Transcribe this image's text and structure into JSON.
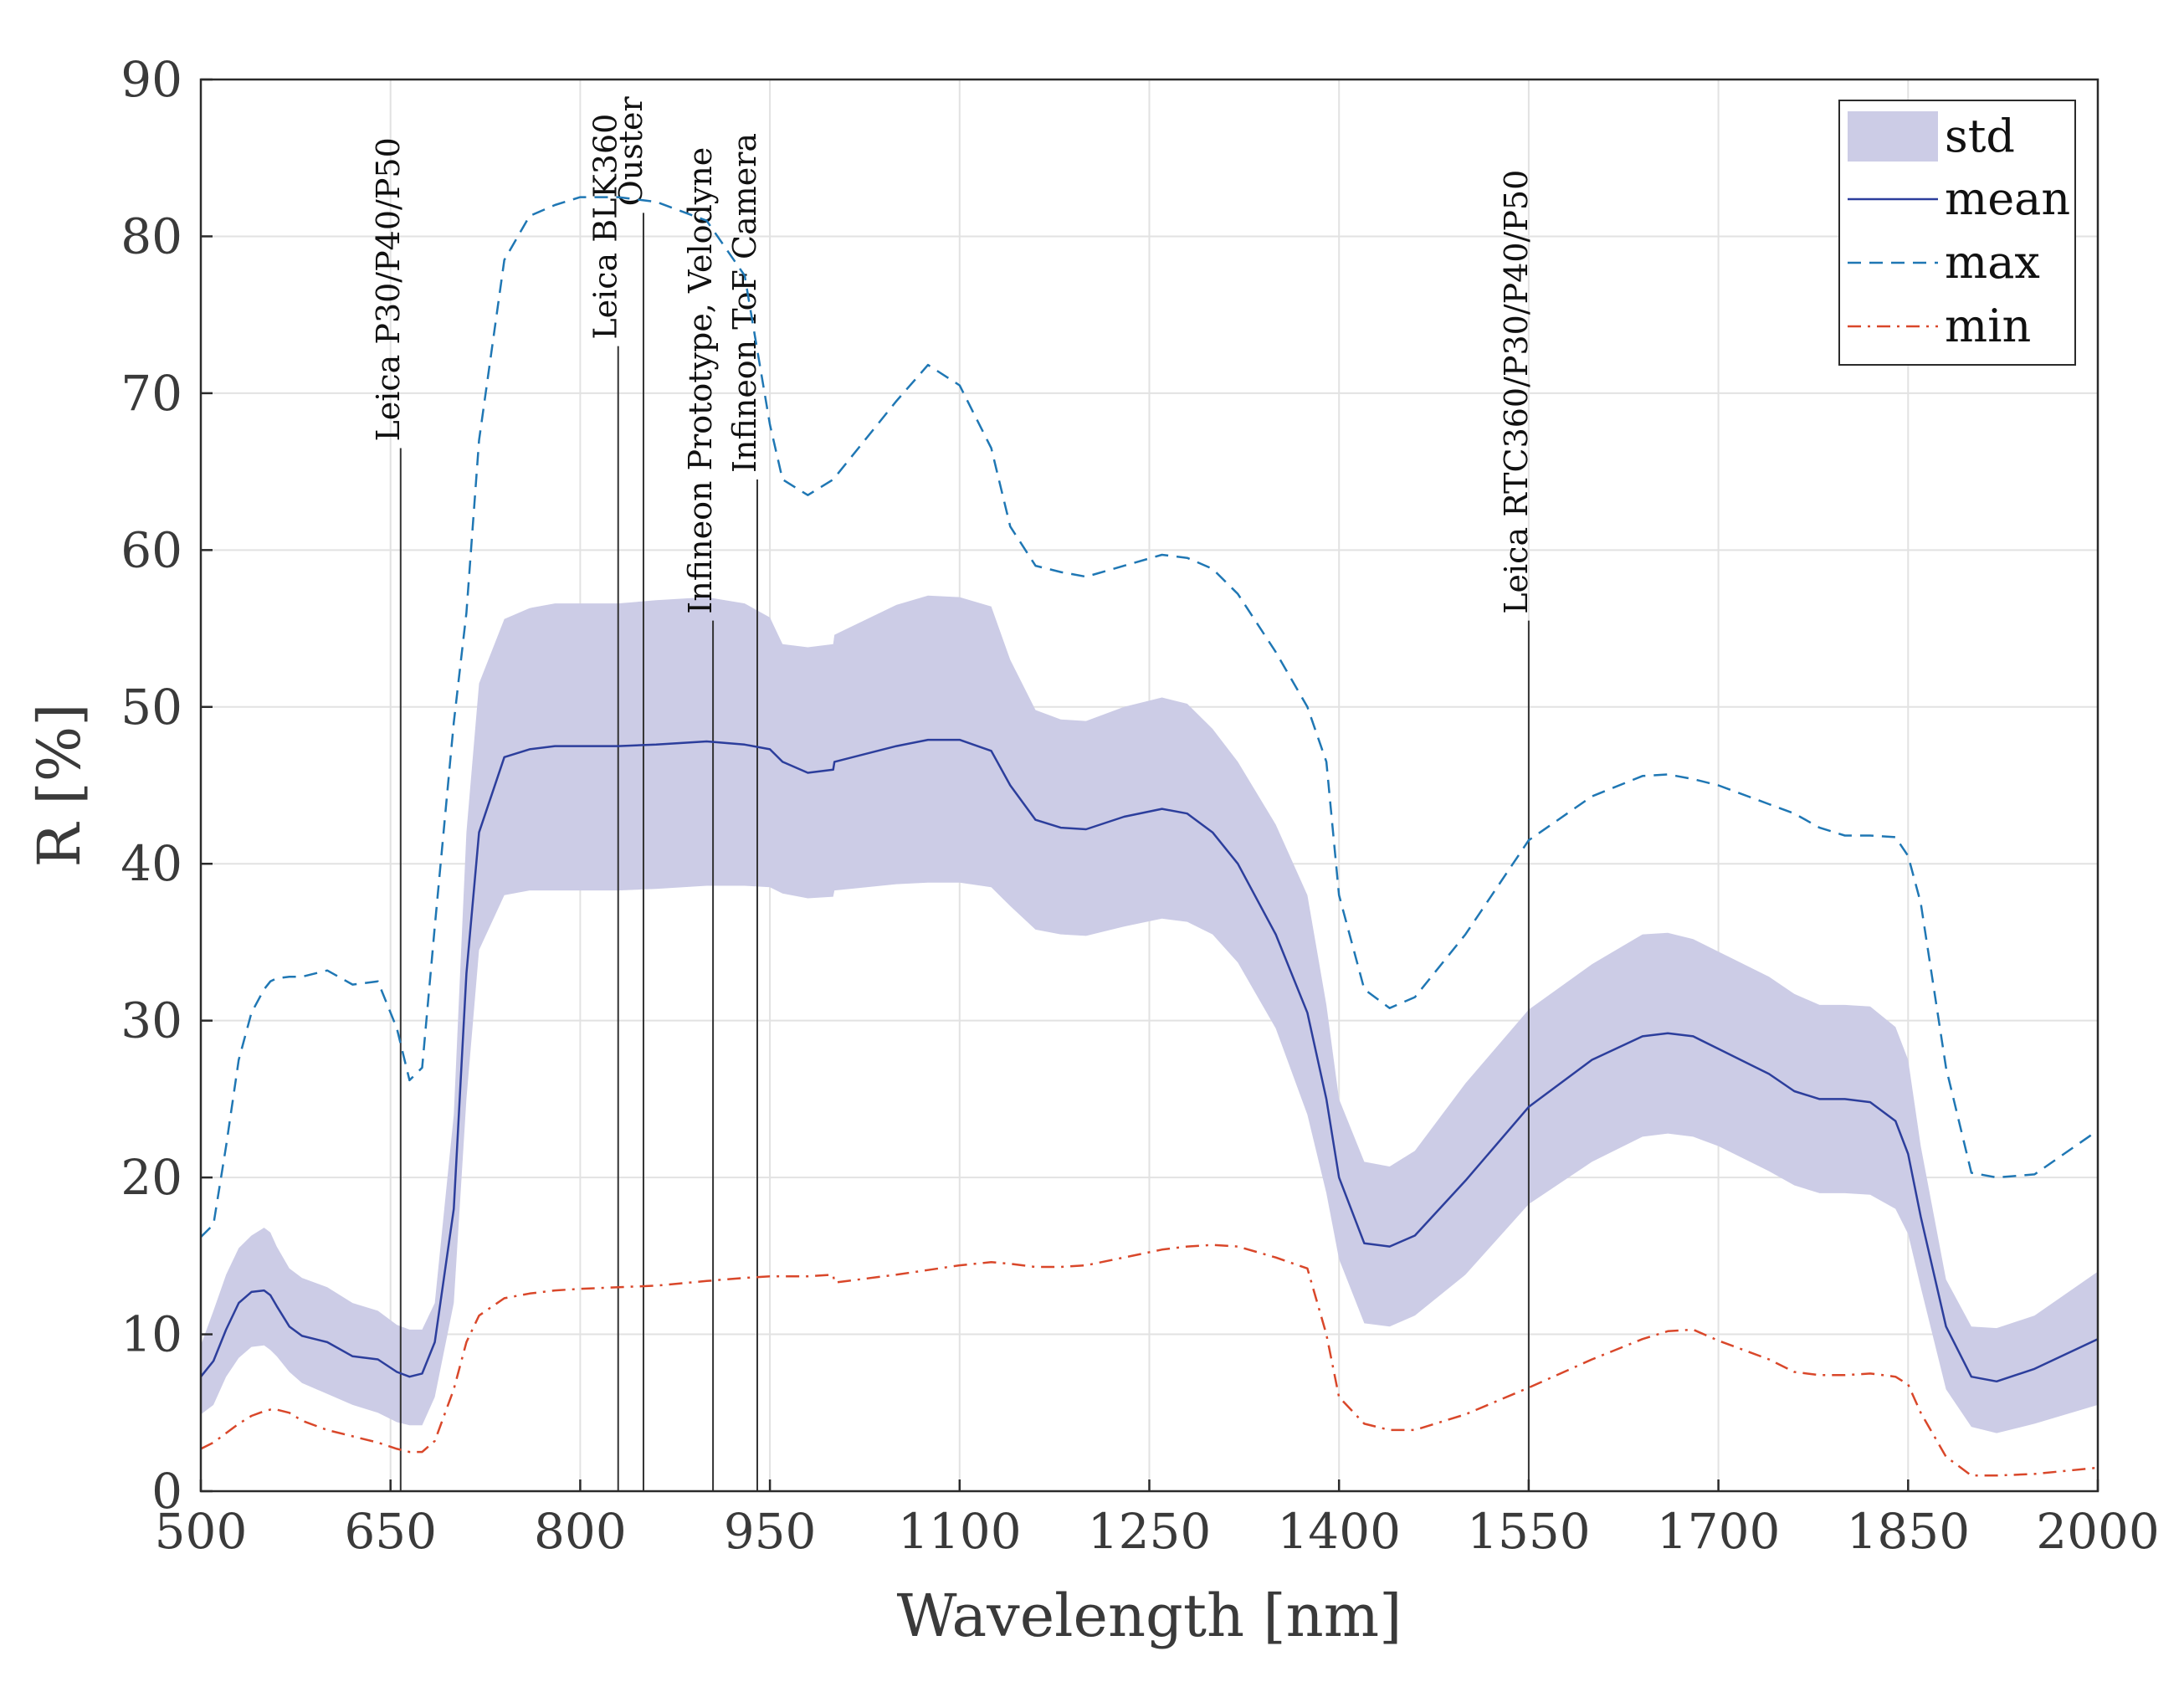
{
  "chart_data": {
    "type": "line",
    "title": "",
    "xlabel": "Wavelength [nm]",
    "ylabel": "R [%]",
    "xlim": [
      500,
      2000
    ],
    "ylim": [
      0,
      90
    ],
    "xticks": [
      "500",
      "650",
      "800",
      "950",
      "1100",
      "1250",
      "1400",
      "1550",
      "1700",
      "1850",
      "2000"
    ],
    "yticks": [
      "0",
      "10",
      "20",
      "30",
      "40",
      "50",
      "60",
      "70",
      "80",
      "90"
    ],
    "grid": true,
    "legend_position": "top-right",
    "colors": {
      "std": "#cccce6",
      "mean": "#2c3e9c",
      "max": "#1f77b4",
      "min": "#d9472a",
      "marker": "#333333"
    },
    "x": [
      500,
      510,
      520,
      530,
      540,
      550,
      555,
      560,
      570,
      580,
      600,
      620,
      640,
      655,
      665,
      675,
      685,
      700,
      710,
      720,
      740,
      760,
      780,
      800,
      830,
      860,
      900,
      930,
      950,
      960,
      980,
      1000,
      1001,
      1050,
      1075,
      1100,
      1125,
      1140,
      1160,
      1180,
      1200,
      1230,
      1260,
      1280,
      1300,
      1320,
      1350,
      1375,
      1390,
      1400,
      1420,
      1440,
      1460,
      1500,
      1550,
      1600,
      1640,
      1660,
      1680,
      1700,
      1740,
      1760,
      1780,
      1800,
      1820,
      1840,
      1850,
      1860,
      1880,
      1900,
      1920,
      1950,
      2000
    ],
    "series": [
      {
        "name": "mean",
        "style": "solid",
        "values": [
          7.3,
          8.3,
          10.3,
          12.0,
          12.7,
          12.8,
          12.5,
          11.8,
          10.5,
          9.9,
          9.5,
          8.6,
          8.4,
          7.6,
          7.3,
          7.5,
          9.5,
          18.0,
          33.0,
          42.0,
          46.8,
          47.3,
          47.5,
          47.5,
          47.5,
          47.6,
          47.8,
          47.6,
          47.3,
          46.5,
          45.8,
          46.0,
          46.5,
          47.5,
          47.9,
          47.9,
          47.2,
          45.0,
          42.8,
          42.3,
          42.2,
          43.0,
          43.5,
          43.2,
          42.0,
          40.0,
          35.5,
          30.5,
          25.0,
          20.0,
          15.8,
          15.6,
          16.3,
          19.8,
          24.5,
          27.5,
          29.0,
          29.2,
          29.0,
          28.2,
          26.6,
          25.5,
          25.0,
          25.0,
          24.8,
          23.6,
          21.5,
          17.5,
          10.5,
          7.3,
          7.0,
          7.8,
          9.7
        ]
      },
      {
        "name": "max",
        "style": "dashed",
        "values": [
          16.2,
          17.0,
          22.0,
          27.5,
          30.5,
          32.0,
          32.5,
          32.7,
          32.8,
          32.8,
          33.2,
          32.3,
          32.5,
          29.5,
          26.2,
          27.0,
          36.0,
          49.0,
          56.0,
          67.0,
          78.5,
          81.3,
          82.0,
          82.5,
          82.5,
          82.2,
          81.0,
          77.5,
          68.0,
          64.5,
          63.5,
          64.5,
          64.6,
          69.5,
          71.8,
          70.5,
          66.5,
          61.5,
          59.0,
          58.6,
          58.3,
          59.0,
          59.7,
          59.5,
          58.8,
          57.2,
          53.5,
          50.0,
          46.5,
          38.0,
          32.0,
          30.8,
          31.5,
          35.5,
          41.5,
          44.3,
          45.6,
          45.7,
          45.4,
          45.0,
          43.8,
          43.2,
          42.3,
          41.8,
          41.8,
          41.7,
          40.5,
          37.5,
          27.0,
          20.3,
          20.0,
          20.2,
          23.0
        ]
      },
      {
        "name": "min",
        "style": "dashdot",
        "values": [
          2.7,
          3.1,
          3.7,
          4.3,
          4.8,
          5.1,
          5.2,
          5.2,
          5.0,
          4.5,
          3.9,
          3.5,
          3.1,
          2.7,
          2.5,
          2.5,
          3.2,
          6.5,
          9.5,
          11.2,
          12.3,
          12.6,
          12.8,
          12.9,
          13.0,
          13.1,
          13.4,
          13.6,
          13.7,
          13.7,
          13.7,
          13.8,
          13.3,
          13.8,
          14.1,
          14.4,
          14.6,
          14.5,
          14.3,
          14.3,
          14.4,
          14.9,
          15.4,
          15.6,
          15.7,
          15.6,
          14.9,
          14.2,
          10.0,
          6.0,
          4.3,
          3.9,
          3.9,
          4.9,
          6.6,
          8.4,
          9.7,
          10.2,
          10.3,
          9.6,
          8.4,
          7.6,
          7.4,
          7.4,
          7.5,
          7.3,
          6.8,
          5.0,
          2.2,
          1.0,
          1.0,
          1.1,
          1.5
        ]
      },
      {
        "name": "std",
        "style": "band",
        "upper": [
          9.3,
          11.5,
          13.8,
          15.5,
          16.3,
          16.8,
          16.5,
          15.6,
          14.2,
          13.6,
          13.0,
          12.0,
          11.5,
          10.6,
          10.3,
          10.3,
          12.0,
          24.0,
          42.0,
          51.5,
          55.6,
          56.3,
          56.6,
          56.6,
          56.6,
          56.8,
          57.0,
          56.6,
          55.7,
          54.0,
          53.8,
          54.0,
          54.6,
          56.5,
          57.1,
          57.0,
          56.4,
          53.0,
          49.8,
          49.2,
          49.1,
          50.0,
          50.6,
          50.2,
          48.6,
          46.5,
          42.5,
          38.0,
          31.0,
          25.0,
          21.0,
          20.7,
          21.7,
          26.0,
          30.7,
          33.6,
          35.5,
          35.6,
          35.2,
          34.4,
          32.8,
          31.7,
          31.0,
          31.0,
          30.9,
          29.6,
          27.5,
          22.0,
          13.5,
          10.5,
          10.4,
          11.2,
          14.0
        ],
        "lower": [
          4.9,
          5.5,
          7.3,
          8.5,
          9.2,
          9.3,
          9.0,
          8.6,
          7.6,
          6.9,
          6.2,
          5.5,
          5.0,
          4.4,
          4.2,
          4.2,
          6.0,
          12.0,
          25.0,
          34.5,
          38.0,
          38.3,
          38.3,
          38.3,
          38.3,
          38.4,
          38.6,
          38.6,
          38.5,
          38.1,
          37.8,
          37.9,
          38.3,
          38.7,
          38.8,
          38.8,
          38.5,
          37.3,
          35.8,
          35.5,
          35.4,
          36.0,
          36.5,
          36.3,
          35.5,
          33.7,
          29.5,
          24.0,
          19.0,
          14.8,
          10.7,
          10.5,
          11.2,
          13.8,
          18.3,
          21.0,
          22.6,
          22.8,
          22.6,
          22.0,
          20.4,
          19.5,
          19.0,
          19.0,
          18.9,
          18.0,
          16.4,
          13.0,
          6.5,
          4.1,
          3.7,
          4.3,
          5.5
        ]
      }
    ],
    "markers": [
      {
        "x": 658,
        "top": 66.5,
        "label": "Leica P30/P40/P50"
      },
      {
        "x": 830,
        "top": 73.0,
        "label": "Leica BLK360"
      },
      {
        "x": 850,
        "top": 81.5,
        "label": "Ouster"
      },
      {
        "x": 905,
        "top": 55.5,
        "label": "Infineon Prototype, Velodyne"
      },
      {
        "x": 940,
        "top": 64.5,
        "label": "Infineon ToF Camera"
      },
      {
        "x": 1550,
        "top": 55.5,
        "label": "Leica RTC360/P30/P40/P50"
      }
    ],
    "legend": [
      "std",
      "mean",
      "max",
      "min"
    ]
  }
}
